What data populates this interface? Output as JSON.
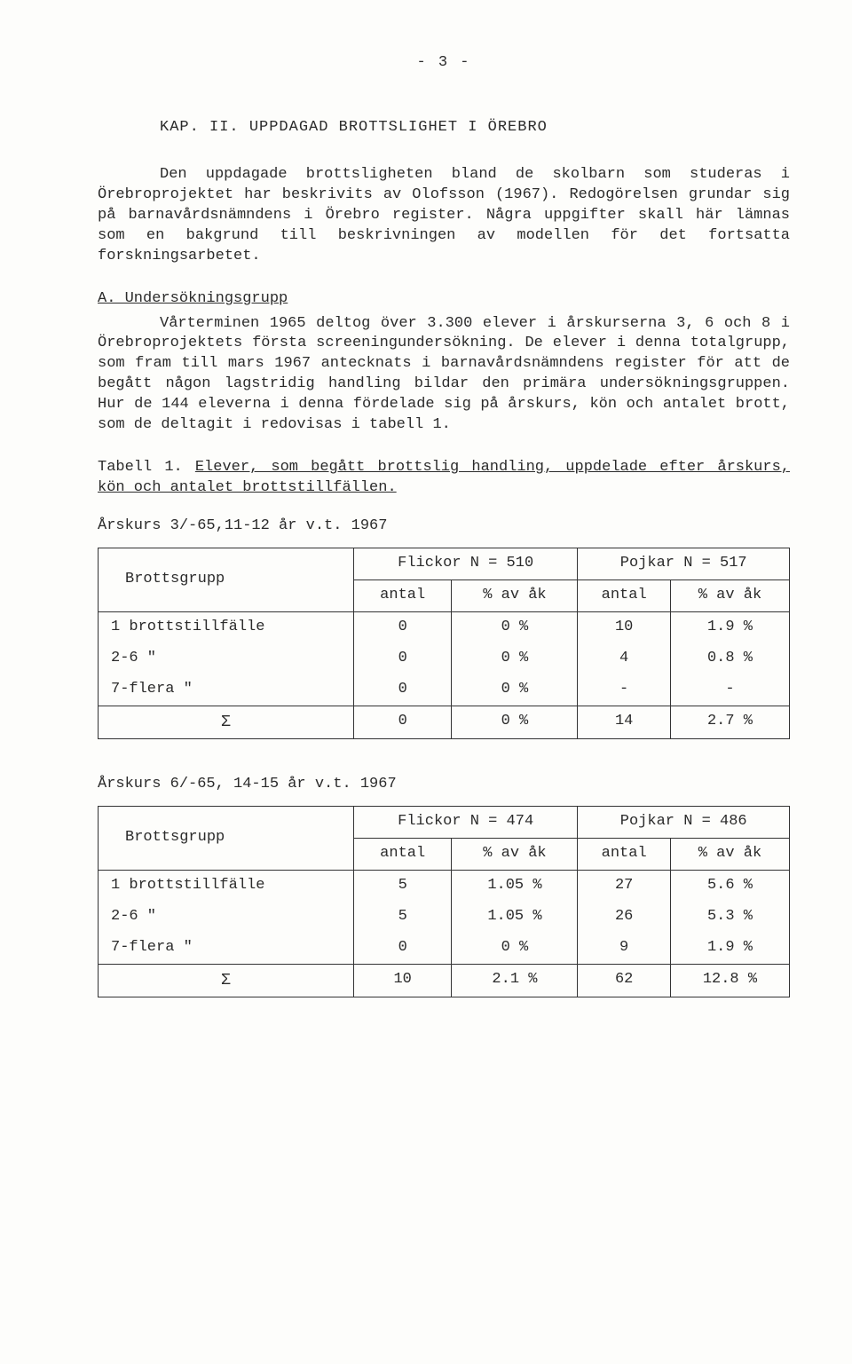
{
  "page_number": "- 3 -",
  "chapter_title": "KAP. II. UPPDAGAD BROTTSLIGHET I ÖREBRO",
  "para1": "Den uppdagade brottsligheten bland de skolbarn som studeras i Örebroprojektet har beskrivits av Olofsson (1967). Redogörelsen grundar sig på barnavårdsnämndens i Örebro register. Några uppgifter skall här lämnas som en bakgrund till beskrivningen av modellen för det fortsatta forskningsarbetet.",
  "sectA_head": "A. Undersökningsgrupp",
  "para2a": "Vårterminen 1965 deltog över 3.300 elever i årskurserna 3, 6 och 8 i Örebroprojektets första screeningundersökning. De elever i denna totalgrupp, som fram till mars 1967 antecknats i barnavårdsnämndens register för att de begått någon lagstridig handling bildar den primära undersökningsgruppen. Hur de 144 eleverna i denna fördelade sig på årskurs, kön och antalet brott, som de deltagit i redovisas i tabell 1.",
  "table_caption_lead": "Tabell 1. ",
  "table_caption_u1": "Elever, som begått brottslig handling, uppdelade efter årskurs, kön och antalet brottstillfällen.",
  "t1_sub": "Årskurs 3/-65,11-12 år v.t. 1967",
  "t2_sub": "Årskurs 6/-65, 14-15 år v.t. 1967",
  "hdr_brotts": "Brottsgrupp",
  "hdr_flk1": "Flickor N = 510",
  "hdr_pjk1": "Pojkar N = 517",
  "hdr_flk2": "Flickor N = 474",
  "hdr_pjk2": "Pojkar N = 486",
  "hdr_antal": "antal",
  "hdr_pct": "% av åk",
  "rows1": {
    "r1": {
      "label": "1 brottstillfälle",
      "a": "0",
      "b": "0 %",
      "c": "10",
      "d": "1.9 %"
    },
    "r2": {
      "label": "2-6      \"",
      "a": "0",
      "b": "0 %",
      "c": "4",
      "d": "0.8 %"
    },
    "r3": {
      "label": "7-flera \"",
      "a": "0",
      "b": "0 %",
      "c": "-",
      "d": "-"
    },
    "sum": {
      "label": "Σ",
      "a": "0",
      "b": "0 %",
      "c": "14",
      "d": "2.7 %"
    }
  },
  "rows2": {
    "r1": {
      "label": "1 brottstillfälle",
      "a": "5",
      "b": "1.05 %",
      "c": "27",
      "d": "5.6 %"
    },
    "r2": {
      "label": "2-6       \"",
      "a": "5",
      "b": "1.05 %",
      "c": "26",
      "d": "5.3 %"
    },
    "r3": {
      "label": "7-flera  \"",
      "a": "0",
      "b": "0 %",
      "c": "9",
      "d": "1.9 %"
    },
    "sum": {
      "label": "Σ",
      "a": "10",
      "b": "2.1  %",
      "c": "62",
      "d": "12.8 %"
    }
  }
}
